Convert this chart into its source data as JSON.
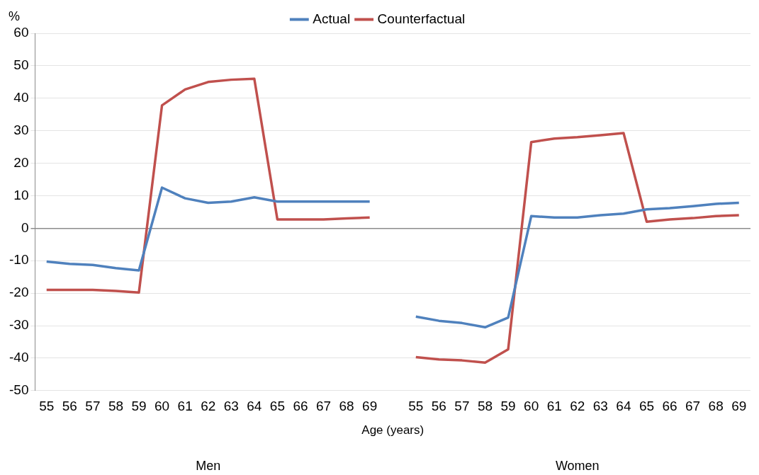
{
  "chart_data": {
    "type": "line",
    "ylabel": "%",
    "xlabel": "Age (years)",
    "categories": [
      "55",
      "56",
      "57",
      "58",
      "59",
      "60",
      "61",
      "62",
      "63",
      "64",
      "65",
      "66",
      "67",
      "68",
      "69",
      null,
      "55",
      "56",
      "57",
      "58",
      "59",
      "60",
      "61",
      "62",
      "63",
      "64",
      "65",
      "66",
      "67",
      "68",
      "69"
    ],
    "series": [
      {
        "name": "Actual",
        "color": "#4f81bd",
        "values": [
          -10.3,
          -11,
          -11.3,
          -12.3,
          -13,
          12.5,
          9.2,
          7.8,
          8.2,
          9.5,
          8.2,
          8.2,
          8.2,
          8.2,
          8.2,
          null,
          -27.2,
          -28.5,
          -29.2,
          -30.5,
          -27.5,
          3.7,
          3.3,
          3.3,
          4,
          4.5,
          5.8,
          6.2,
          6.8,
          7.5,
          7.8
        ]
      },
      {
        "name": "Counterfactual",
        "color": "#c0504d",
        "values": [
          -19,
          -19,
          -19,
          -19.3,
          -19.8,
          37.8,
          42.7,
          45,
          45.7,
          46,
          2.7,
          2.7,
          2.7,
          3,
          3.3,
          null,
          -39.7,
          -40.4,
          -40.7,
          -41.4,
          -37.3,
          26.5,
          27.6,
          28,
          28.6,
          29.3,
          2,
          2.7,
          3.1,
          3.7,
          4
        ]
      }
    ],
    "ylim": [
      -50,
      60
    ],
    "yticks": [
      -50,
      -40,
      -30,
      -20,
      -10,
      0,
      10,
      20,
      30,
      40,
      50,
      60
    ],
    "grid": "y",
    "legend": "top",
    "line_style": "solid",
    "marker": "none",
    "annotations": [
      "Men",
      "Women"
    ]
  }
}
